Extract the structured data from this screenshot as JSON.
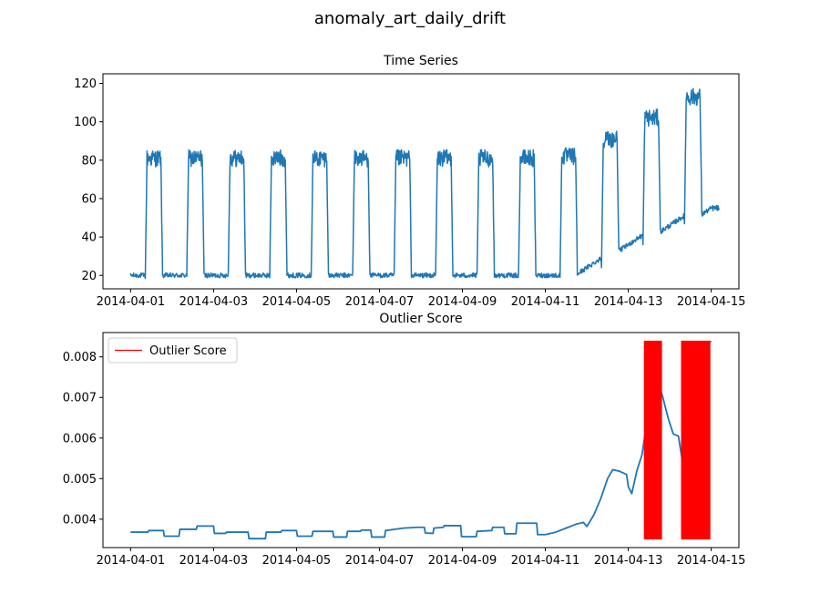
{
  "figure": {
    "title": "anomaly_art_daily_drift"
  },
  "colors": {
    "series": "#1f77b4",
    "outlier": "#ff0000",
    "axis": "#000000"
  },
  "chart_data": [
    {
      "type": "line",
      "title": "Time Series",
      "xlabel": "",
      "ylabel": "",
      "x_type": "date",
      "xlim": [
        "2014-03-31T08:00",
        "2014-04-15T16:00"
      ],
      "ylim": [
        13,
        125
      ],
      "x_ticks": [
        "2014-04-01",
        "2014-04-03",
        "2014-04-05",
        "2014-04-07",
        "2014-04-09",
        "2014-04-11",
        "2014-04-13",
        "2014-04-15"
      ],
      "y_ticks": [
        20,
        40,
        60,
        80,
        100,
        120
      ],
      "grid": false,
      "daily_cycles": [
        {
          "day": "2014-04-01",
          "low": 20,
          "high": 81
        },
        {
          "day": "2014-04-02",
          "low": 20,
          "high": 81
        },
        {
          "day": "2014-04-03",
          "low": 20,
          "high": 81
        },
        {
          "day": "2014-04-04",
          "low": 20,
          "high": 81
        },
        {
          "day": "2014-04-05",
          "low": 20,
          "high": 81
        },
        {
          "day": "2014-04-06",
          "low": 20,
          "high": 81
        },
        {
          "day": "2014-04-07",
          "low": 20,
          "high": 81
        },
        {
          "day": "2014-04-08",
          "low": 20,
          "high": 81
        },
        {
          "day": "2014-04-09",
          "low": 20,
          "high": 81
        },
        {
          "day": "2014-04-10",
          "low": 20,
          "high": 81
        },
        {
          "day": "2014-04-11",
          "low": 20,
          "high": 82
        },
        {
          "day": "2014-04-12",
          "low": 24,
          "high": 91
        },
        {
          "day": "2014-04-13",
          "low": 36,
          "high": 102
        },
        {
          "day": "2014-04-14",
          "low": 46,
          "high": 113
        },
        {
          "day": "2014-04-15",
          "low": 55,
          "high": 55
        }
      ]
    },
    {
      "type": "line",
      "title": "Outlier Score",
      "xlabel": "",
      "ylabel": "",
      "x_type": "date",
      "xlim": [
        "2014-03-31T08:00",
        "2014-04-15T16:00"
      ],
      "ylim": [
        0.0033,
        0.0086
      ],
      "x_ticks": [
        "2014-04-01",
        "2014-04-03",
        "2014-04-05",
        "2014-04-07",
        "2014-04-09",
        "2014-04-11",
        "2014-04-13",
        "2014-04-15"
      ],
      "y_ticks": [
        0.004,
        0.005,
        0.006,
        0.007,
        0.008
      ],
      "y_tick_labels": [
        "0.004",
        "0.005",
        "0.006",
        "0.007",
        "0.008"
      ],
      "grid": false,
      "legend": {
        "position": "top-left",
        "entries": [
          {
            "label": "Outlier Score",
            "color": "#ff0000"
          }
        ]
      },
      "series": [
        {
          "values": [
            [
              "2014-04-01T00:00",
              0.00368
            ],
            [
              "2014-04-01T10:00",
              0.00368
            ],
            [
              "2014-04-01T10:30",
              0.00372
            ],
            [
              "2014-04-01T19:00",
              0.00372
            ],
            [
              "2014-04-01T19:30",
              0.00358
            ],
            [
              "2014-04-02T04:00",
              0.00358
            ],
            [
              "2014-04-02T04:30",
              0.00375
            ],
            [
              "2014-04-02T14:00",
              0.00375
            ],
            [
              "2014-04-02T14:30",
              0.00383
            ],
            [
              "2014-04-03T00:00",
              0.00383
            ],
            [
              "2014-04-03T00:30",
              0.00365
            ],
            [
              "2014-04-03T07:00",
              0.00365
            ],
            [
              "2014-04-03T07:30",
              0.00368
            ],
            [
              "2014-04-03T20:00",
              0.00368
            ],
            [
              "2014-04-03T20:30",
              0.00352
            ],
            [
              "2014-04-04T06:00",
              0.00352
            ],
            [
              "2014-04-04T06:30",
              0.00368
            ],
            [
              "2014-04-04T15:00",
              0.00368
            ],
            [
              "2014-04-04T15:30",
              0.00372
            ],
            [
              "2014-04-05T00:00",
              0.00372
            ],
            [
              "2014-04-05T00:30",
              0.00358
            ],
            [
              "2014-04-05T09:00",
              0.00358
            ],
            [
              "2014-04-05T09:30",
              0.0037
            ],
            [
              "2014-04-05T21:00",
              0.0037
            ],
            [
              "2014-04-05T21:30",
              0.00356
            ],
            [
              "2014-04-06T05:00",
              0.00356
            ],
            [
              "2014-04-06T05:30",
              0.0037
            ],
            [
              "2014-04-06T13:00",
              0.0037
            ],
            [
              "2014-04-06T13:30",
              0.00373
            ],
            [
              "2014-04-06T19:00",
              0.00373
            ],
            [
              "2014-04-06T19:30",
              0.00356
            ],
            [
              "2014-04-07T03:00",
              0.00356
            ],
            [
              "2014-04-07T03:30",
              0.00372
            ],
            [
              "2014-04-07T14:00",
              0.00378
            ],
            [
              "2014-04-07T22:00",
              0.0038
            ],
            [
              "2014-04-08T02:00",
              0.0038
            ],
            [
              "2014-04-08T02:30",
              0.00366
            ],
            [
              "2014-04-08T07:00",
              0.00365
            ],
            [
              "2014-04-08T07:30",
              0.00378
            ],
            [
              "2014-04-08T13:00",
              0.0038
            ],
            [
              "2014-04-08T13:30",
              0.00384
            ],
            [
              "2014-04-08T23:00",
              0.00384
            ],
            [
              "2014-04-08T23:30",
              0.00357
            ],
            [
              "2014-04-09T08:00",
              0.00357
            ],
            [
              "2014-04-09T08:30",
              0.0037
            ],
            [
              "2014-04-09T17:00",
              0.00372
            ],
            [
              "2014-04-09T17:30",
              0.0038
            ],
            [
              "2014-04-10T00:00",
              0.0038
            ],
            [
              "2014-04-10T00:30",
              0.00364
            ],
            [
              "2014-04-10T07:00",
              0.00364
            ],
            [
              "2014-04-10T07:30",
              0.0039
            ],
            [
              "2014-04-10T19:00",
              0.0039
            ],
            [
              "2014-04-10T19:30",
              0.00362
            ],
            [
              "2014-04-11T00:00",
              0.00362
            ],
            [
              "2014-04-11T06:00",
              0.00368
            ],
            [
              "2014-04-11T12:00",
              0.00378
            ],
            [
              "2014-04-11T18:00",
              0.00388
            ],
            [
              "2014-04-11T22:00",
              0.00392
            ],
            [
              "2014-04-12T00:00",
              0.00382
            ],
            [
              "2014-04-12T04:00",
              0.0041
            ],
            [
              "2014-04-12T08:00",
              0.0045
            ],
            [
              "2014-04-12T12:00",
              0.005
            ],
            [
              "2014-04-12T15:00",
              0.00522
            ],
            [
              "2014-04-12T19:00",
              0.00518
            ],
            [
              "2014-04-12T23:00",
              0.0051
            ],
            [
              "2014-04-13T00:00",
              0.0048
            ],
            [
              "2014-04-13T02:00",
              0.00463
            ],
            [
              "2014-04-13T05:00",
              0.0052
            ],
            [
              "2014-04-13T08:00",
              0.0056
            ],
            [
              "2014-04-13T11:00",
              0.0065
            ],
            [
              "2014-04-13T14:00",
              0.0073
            ],
            [
              "2014-04-13T17:00",
              0.00745
            ],
            [
              "2014-04-13T20:00",
              0.007
            ],
            [
              "2014-04-13T23:00",
              0.0065
            ],
            [
              "2014-04-14T02:00",
              0.0061
            ],
            [
              "2014-04-14T05:00",
              0.00605
            ],
            [
              "2014-04-14T07:00",
              0.0055
            ],
            [
              "2014-04-14T09:00",
              0.0061
            ],
            [
              "2014-04-14T12:00",
              0.0074
            ],
            [
              "2014-04-14T15:00",
              0.00795
            ],
            [
              "2014-04-14T19:00",
              0.0083
            ],
            [
              "2014-04-15T00:00",
              0.00838
            ]
          ]
        }
      ],
      "outlier_intervals": [
        {
          "start": "2014-04-13T09:00",
          "end": "2014-04-13T19:30",
          "ymin": 0.0035,
          "ymax": 0.0084
        },
        {
          "start": "2014-04-14T06:30",
          "end": "2014-04-14T23:30",
          "ymin": 0.0035,
          "ymax": 0.0084
        }
      ]
    }
  ]
}
